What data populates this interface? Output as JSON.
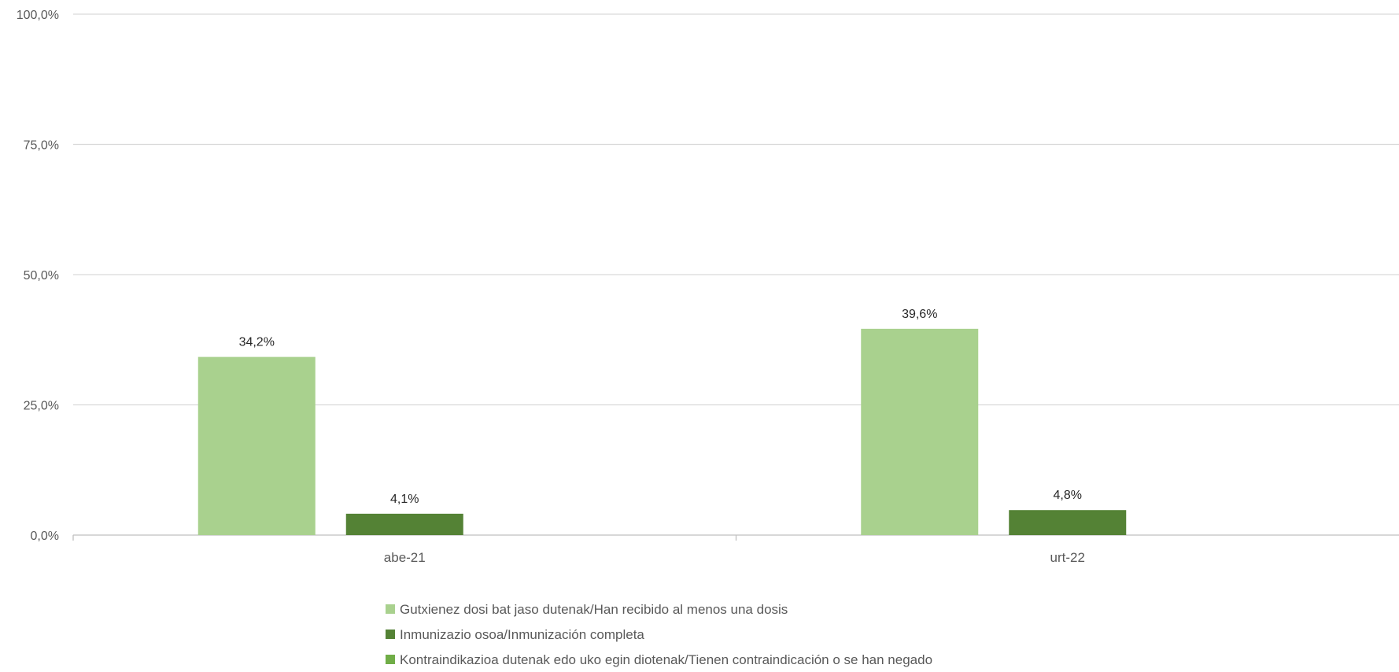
{
  "chart_data": {
    "type": "bar",
    "categories": [
      "abe-21",
      "urt-22"
    ],
    "series": [
      {
        "name": "Gutxienez dosi bat jaso dutenak/Han recibido al menos una dosis",
        "values": [
          34.2,
          39.6
        ],
        "labels": [
          "34,2%",
          "39,6%"
        ],
        "color": "#a9d18e"
      },
      {
        "name": "Inmunizazio osoa/Inmunización completa",
        "values": [
          4.1,
          4.8
        ],
        "labels": [
          "4,1%",
          "4,8%"
        ],
        "color": "#548235"
      },
      {
        "name": "Kontraindikazioa dutenak edo uko egin diotenak/Tienen contraindicación o se han negado",
        "values": [
          null,
          null
        ],
        "labels": [
          "",
          ""
        ],
        "color": "#70ad47"
      }
    ],
    "yticks": [
      0,
      25,
      50,
      75,
      100
    ],
    "ytick_labels": [
      "0,0%",
      "25,0%",
      "50,0%",
      "75,0%",
      "100,0%"
    ],
    "ylim": [
      0,
      100
    ],
    "title": "",
    "xlabel": "",
    "ylabel": "",
    "grid": true,
    "legend_position": "bottom"
  }
}
